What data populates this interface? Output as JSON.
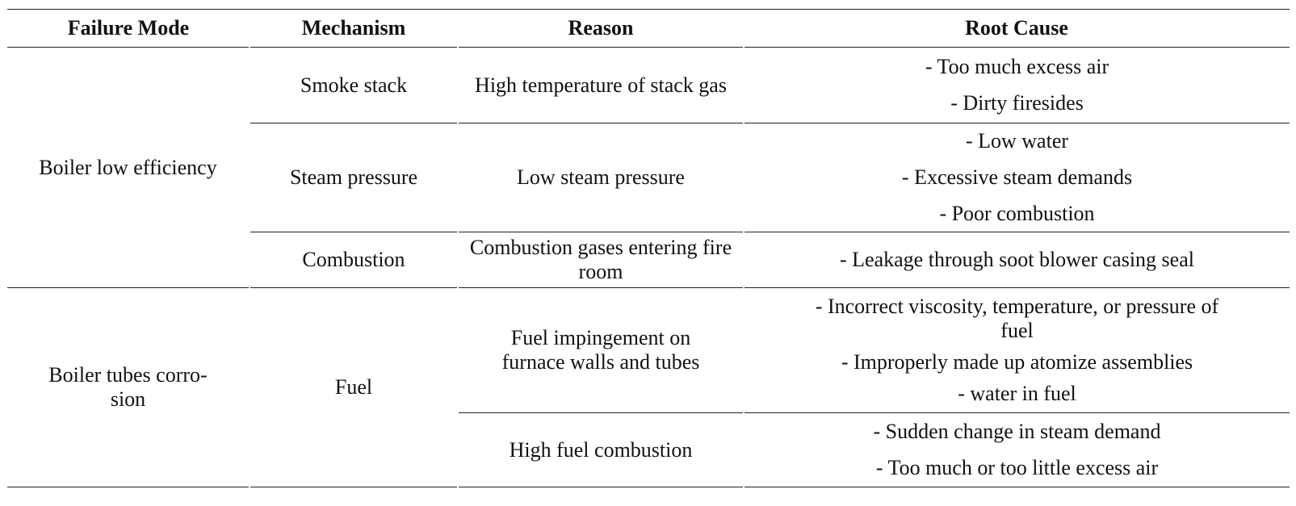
{
  "table": {
    "headers": [
      "Failure Mode",
      "Mechanism",
      "Reason",
      "Root Cause"
    ],
    "groups": [
      {
        "failure_mode": "Boiler low efficiency",
        "rows": [
          {
            "mechanism": "Smoke stack",
            "reason": "High temperature of stack gas",
            "root_causes": [
              "- Too much excess air",
              "- Dirty firesides"
            ]
          },
          {
            "mechanism": "Steam pressure",
            "reason": "Low steam pressure",
            "root_causes": [
              "- Low water",
              "- Excessive steam demands",
              "- Poor combustion"
            ]
          },
          {
            "mechanism": "Combustion",
            "reason": "Combustion gases entering fire room",
            "root_causes": [
              "- Leakage through soot blower casing seal"
            ]
          }
        ]
      },
      {
        "failure_mode": "Boiler tubes corro-sion",
        "mechanism": "Fuel",
        "rows": [
          {
            "reason": "Fuel impingement on furnace walls and tubes",
            "root_causes": [
              "- Incorrect viscosity, temperature, or pressure of fuel",
              "- Improperly made up atomize assemblies",
              "- water in fuel"
            ]
          },
          {
            "reason": "High fuel combustion",
            "root_causes": [
              "- Sudden change in steam demand",
              "- Too much or too little excess air"
            ]
          }
        ]
      }
    ]
  }
}
